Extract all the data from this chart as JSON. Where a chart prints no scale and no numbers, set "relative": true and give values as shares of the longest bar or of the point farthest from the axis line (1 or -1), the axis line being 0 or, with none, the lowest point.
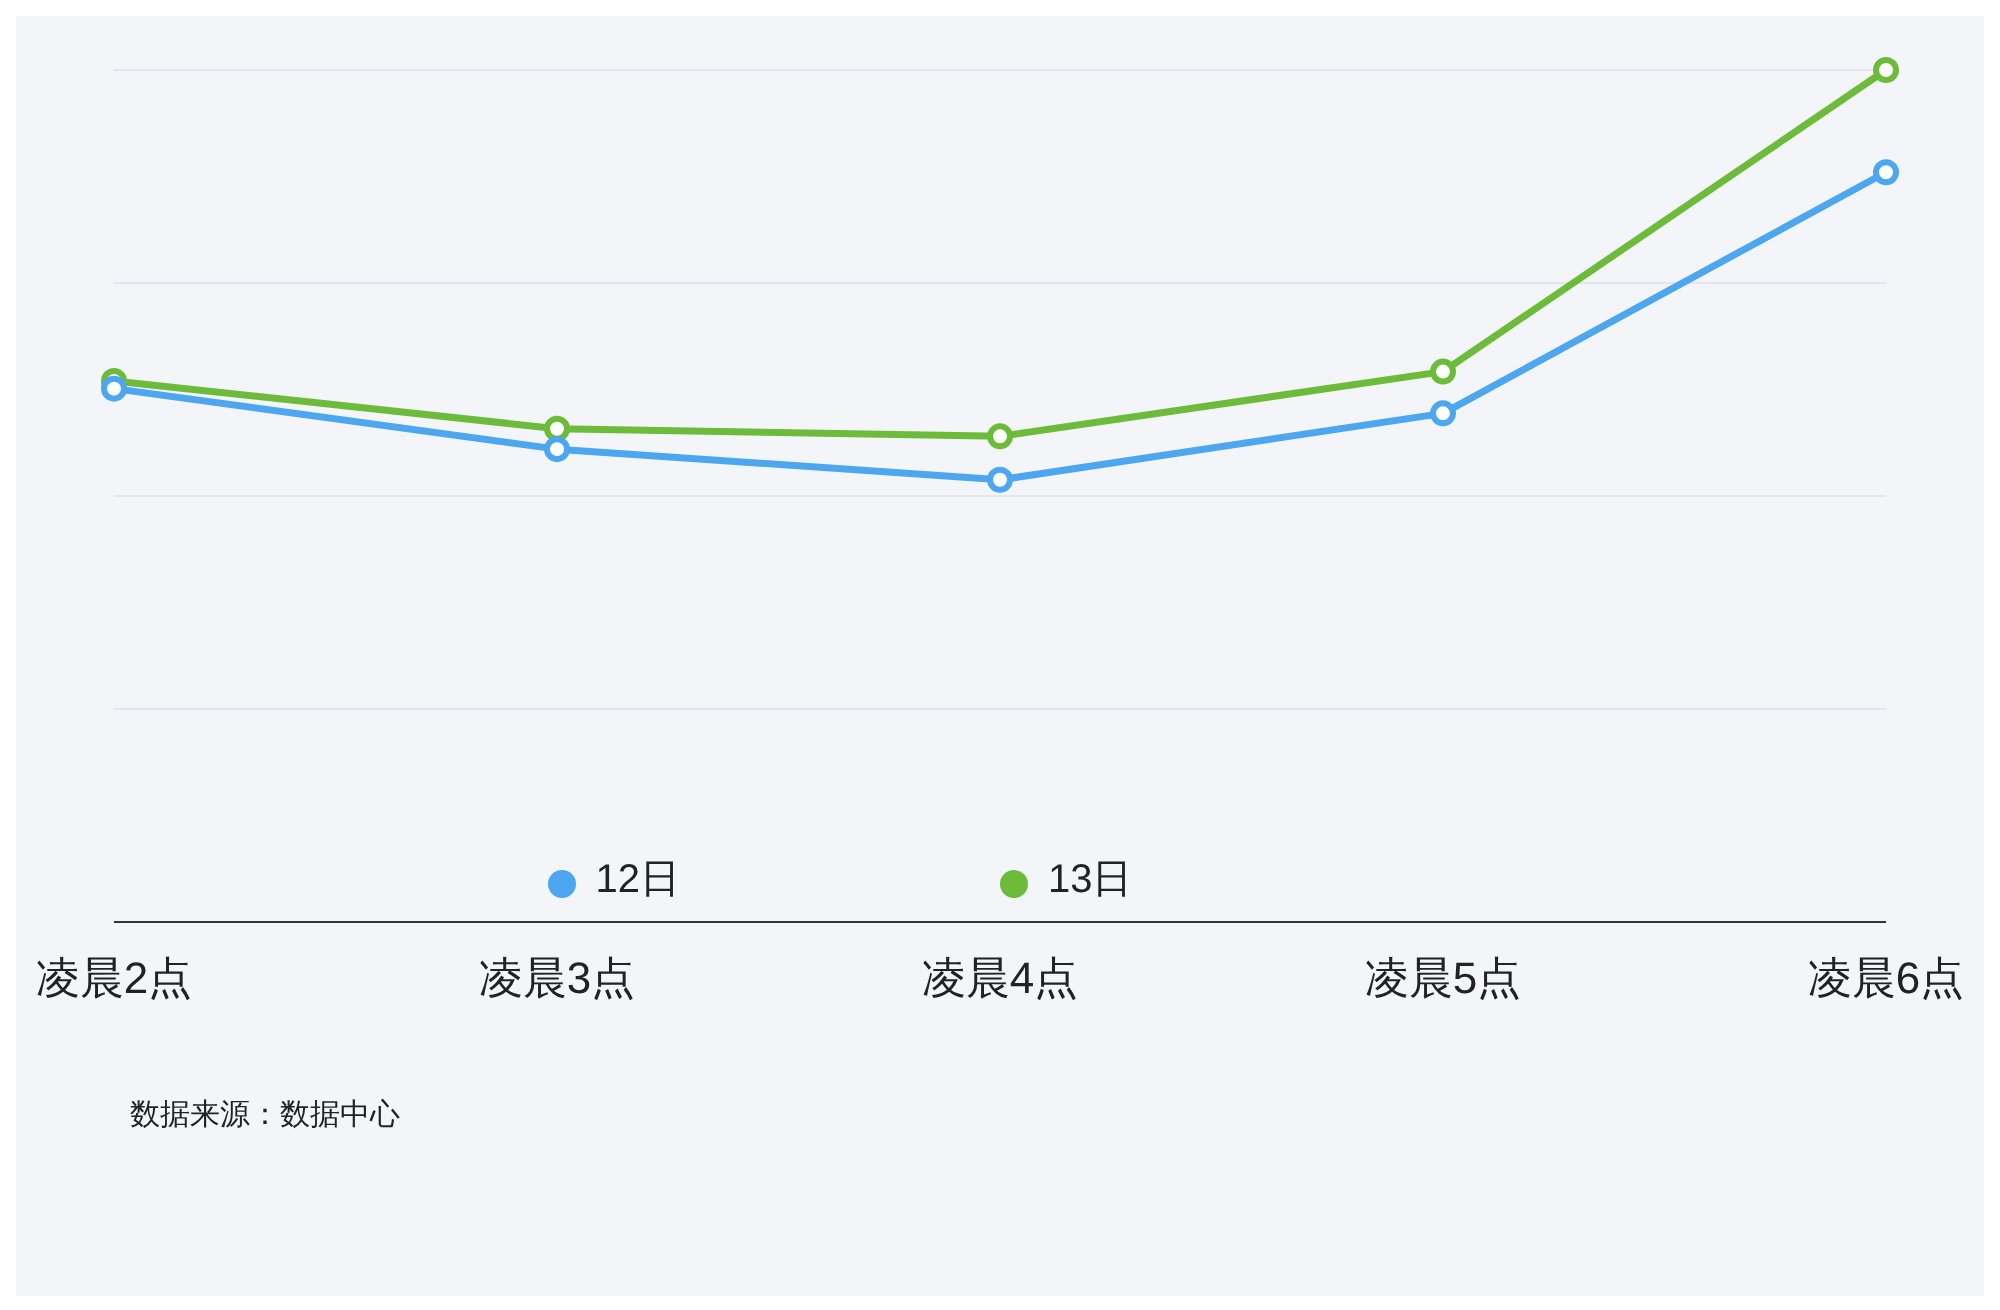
{
  "chart_data": {
    "type": "line",
    "relative": true,
    "categories": [
      "凌晨2点",
      "凌晨3点",
      "凌晨4点",
      "凌晨5点",
      "凌晨6点"
    ],
    "series": [
      {
        "name": "12日",
        "color": "#4da6f0",
        "values": [
          0.626,
          0.555,
          0.519,
          0.597,
          0.88
        ]
      },
      {
        "name": "13日",
        "color": "#6dbb3a",
        "values": [
          0.635,
          0.579,
          0.57,
          0.646,
          1
        ]
      }
    ],
    "grid": "y",
    "legend": "bottom",
    "marker": "circle",
    "line_style": "solid",
    "annotations": [
      "数据来源：数据中心"
    ]
  }
}
